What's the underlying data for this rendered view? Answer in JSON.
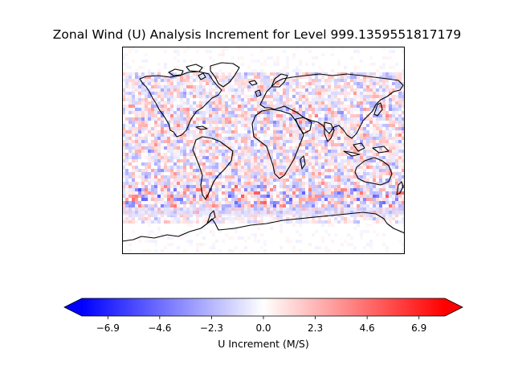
{
  "title": "Zonal Wind (U) Analysis Increment for Level 999.1359551817179",
  "map": {
    "projection": "plate-carree",
    "extent_lon": [
      -180,
      180
    ],
    "extent_lat": [
      -90,
      90
    ],
    "field": "zonal wind analysis increment",
    "colormap": "bwr",
    "coastlines": true
  },
  "colorbar": {
    "label": "U Increment (M/S)",
    "vmin": -8.05,
    "vmax": 8.05,
    "extend": "both",
    "ticks": [
      "−6.9",
      "−4.6",
      "−2.3",
      "0.0",
      "2.3",
      "4.6",
      "6.9"
    ],
    "tick_values": [
      -6.9,
      -4.6,
      -2.3,
      0.0,
      2.3,
      4.6,
      6.9
    ],
    "colors": {
      "low": "#0000ff",
      "mid": "#ffffff",
      "high": "#ff0000"
    }
  }
}
